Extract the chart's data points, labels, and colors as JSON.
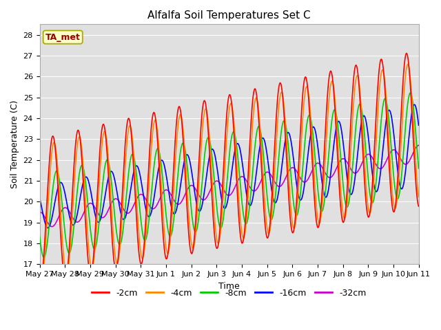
{
  "title": "Alfalfa Soil Temperatures Set C",
  "ylabel": "Soil Temperature (C)",
  "xlabel": "Time",
  "ylim": [
    17.0,
    28.5
  ],
  "yticks": [
    17.0,
    18.0,
    19.0,
    20.0,
    21.0,
    22.0,
    23.0,
    24.0,
    25.0,
    26.0,
    27.0,
    28.0
  ],
  "colors": {
    "-2cm": "#ff0000",
    "-4cm": "#ff8800",
    "-8cm": "#00cc00",
    "-16cm": "#0000ff",
    "-32cm": "#cc00cc"
  },
  "legend_label": "TA_met",
  "legend_box_facecolor": "#ffffcc",
  "legend_box_edgecolor": "#aaaa00",
  "background_color": "#e0e0e0",
  "grid_color": "#ffffff",
  "x_tick_labels": [
    "May 27",
    "May 28",
    "May 29",
    "May 30",
    "May 31",
    "Jun 1",
    "Jun 2",
    "Jun 3",
    "Jun 4",
    "Jun 5",
    "Jun 6",
    "Jun 7",
    "Jun 8",
    "Jun 9",
    "Jun 10",
    "Jun 11"
  ],
  "n_points": 720,
  "n_days": 15
}
